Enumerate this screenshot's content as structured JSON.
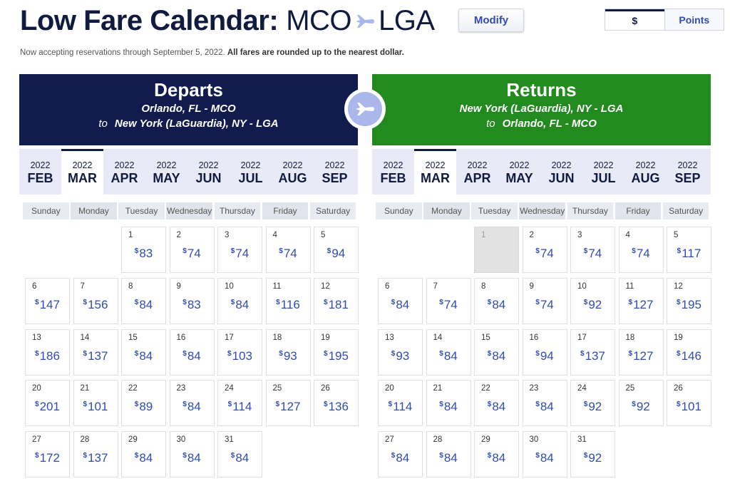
{
  "header": {
    "title": "Low Fare Calendar:",
    "origin": "MCO",
    "destination": "LGA",
    "modify_label": "Modify",
    "currency_dollar": "$",
    "currency_points": "Points"
  },
  "notice": {
    "text": "Now accepting reservations through September 5, 2022.",
    "bold": "All fares are rounded up to the nearest dollar."
  },
  "weekdays": [
    "Sunday",
    "Monday",
    "Tuesday",
    "Wednesday",
    "Thursday",
    "Friday",
    "Saturday"
  ],
  "months": [
    {
      "year": "2022",
      "name": "FEB"
    },
    {
      "year": "2022",
      "name": "MAR"
    },
    {
      "year": "2022",
      "name": "APR"
    },
    {
      "year": "2022",
      "name": "MAY"
    },
    {
      "year": "2022",
      "name": "JUN"
    },
    {
      "year": "2022",
      "name": "JUL"
    },
    {
      "year": "2022",
      "name": "AUG"
    },
    {
      "year": "2022",
      "name": "SEP"
    }
  ],
  "active_month": "MAR",
  "colors": {
    "departs_banner": "#111b4e",
    "returns_banner": "#228a1f",
    "price": "#304cb2"
  },
  "departs": {
    "title": "Departs",
    "from": "Orlando, FL - MCO",
    "to_word": "to",
    "to": "New York (LaGuardia), NY - LGA",
    "start_weekday": 2,
    "fares": [
      {
        "day": "1",
        "price": "83"
      },
      {
        "day": "2",
        "price": "74"
      },
      {
        "day": "3",
        "price": "74"
      },
      {
        "day": "4",
        "price": "74"
      },
      {
        "day": "5",
        "price": "94"
      },
      {
        "day": "6",
        "price": "147"
      },
      {
        "day": "7",
        "price": "156"
      },
      {
        "day": "8",
        "price": "84"
      },
      {
        "day": "9",
        "price": "83"
      },
      {
        "day": "10",
        "price": "84"
      },
      {
        "day": "11",
        "price": "116"
      },
      {
        "day": "12",
        "price": "181"
      },
      {
        "day": "13",
        "price": "186"
      },
      {
        "day": "14",
        "price": "137"
      },
      {
        "day": "15",
        "price": "84"
      },
      {
        "day": "16",
        "price": "84"
      },
      {
        "day": "17",
        "price": "103"
      },
      {
        "day": "18",
        "price": "93"
      },
      {
        "day": "19",
        "price": "195"
      },
      {
        "day": "20",
        "price": "201"
      },
      {
        "day": "21",
        "price": "101"
      },
      {
        "day": "22",
        "price": "89"
      },
      {
        "day": "23",
        "price": "84"
      },
      {
        "day": "24",
        "price": "114"
      },
      {
        "day": "25",
        "price": "127"
      },
      {
        "day": "26",
        "price": "136"
      },
      {
        "day": "27",
        "price": "172"
      },
      {
        "day": "28",
        "price": "137"
      },
      {
        "day": "29",
        "price": "84"
      },
      {
        "day": "30",
        "price": "84"
      },
      {
        "day": "31",
        "price": "84"
      }
    ]
  },
  "returns": {
    "title": "Returns",
    "from": "New York (LaGuardia), NY - LGA",
    "to_word": "to",
    "to": "Orlando, FL - MCO",
    "start_weekday": 2,
    "fares": [
      {
        "day": "1",
        "price": "",
        "disabled": true
      },
      {
        "day": "2",
        "price": "74"
      },
      {
        "day": "3",
        "price": "74"
      },
      {
        "day": "4",
        "price": "74"
      },
      {
        "day": "5",
        "price": "117"
      },
      {
        "day": "6",
        "price": "84"
      },
      {
        "day": "7",
        "price": "74"
      },
      {
        "day": "8",
        "price": "84"
      },
      {
        "day": "9",
        "price": "74"
      },
      {
        "day": "10",
        "price": "92"
      },
      {
        "day": "11",
        "price": "127"
      },
      {
        "day": "12",
        "price": "195"
      },
      {
        "day": "13",
        "price": "93"
      },
      {
        "day": "14",
        "price": "84"
      },
      {
        "day": "15",
        "price": "84"
      },
      {
        "day": "16",
        "price": "94"
      },
      {
        "day": "17",
        "price": "137"
      },
      {
        "day": "18",
        "price": "127"
      },
      {
        "day": "19",
        "price": "146"
      },
      {
        "day": "20",
        "price": "114"
      },
      {
        "day": "21",
        "price": "84"
      },
      {
        "day": "22",
        "price": "84"
      },
      {
        "day": "23",
        "price": "84"
      },
      {
        "day": "24",
        "price": "92"
      },
      {
        "day": "25",
        "price": "92"
      },
      {
        "day": "26",
        "price": "101"
      },
      {
        "day": "27",
        "price": "84"
      },
      {
        "day": "28",
        "price": "84"
      },
      {
        "day": "29",
        "price": "84"
      },
      {
        "day": "30",
        "price": "84"
      },
      {
        "day": "31",
        "price": "92"
      }
    ]
  }
}
